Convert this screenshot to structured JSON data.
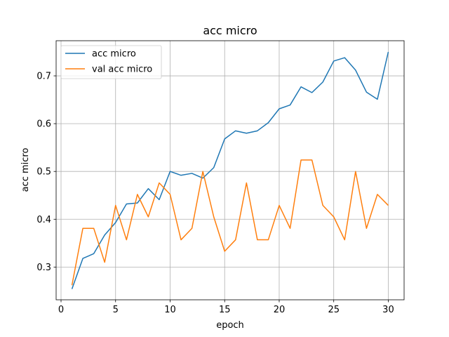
{
  "chart_data": {
    "type": "line",
    "title": "acc micro",
    "xlabel": "epoch",
    "ylabel": "acc micro",
    "xlim": [
      -0.45,
      31.45
    ],
    "ylim": [
      0.2315,
      0.7735
    ],
    "xticks": [
      0,
      5,
      10,
      15,
      20,
      25,
      30
    ],
    "yticks": [
      0.3,
      0.4,
      0.5,
      0.6,
      0.7
    ],
    "grid": true,
    "legend": "upper-left",
    "x": [
      1,
      2,
      3,
      4,
      5,
      6,
      7,
      8,
      9,
      10,
      11,
      12,
      13,
      14,
      15,
      16,
      17,
      18,
      19,
      20,
      21,
      22,
      23,
      24,
      25,
      26,
      27,
      28,
      29,
      30
    ],
    "series": [
      {
        "name": "acc micro",
        "color": "#1f77b4",
        "values": [
          0.254,
          0.318,
          0.328,
          0.367,
          0.393,
          0.432,
          0.434,
          0.464,
          0.441,
          0.5,
          0.492,
          0.496,
          0.486,
          0.508,
          0.568,
          0.585,
          0.58,
          0.585,
          0.602,
          0.631,
          0.639,
          0.677,
          0.665,
          0.687,
          0.731,
          0.738,
          0.712,
          0.666,
          0.651,
          0.75
        ]
      },
      {
        "name": "val acc micro",
        "color": "#ff7f0e",
        "values": [
          0.262,
          0.381,
          0.381,
          0.31,
          0.429,
          0.357,
          0.452,
          0.405,
          0.476,
          0.452,
          0.357,
          0.381,
          0.5,
          0.405,
          0.333,
          0.357,
          0.476,
          0.357,
          0.357,
          0.429,
          0.381,
          0.524,
          0.524,
          0.429,
          0.405,
          0.357,
          0.5,
          0.381,
          0.452,
          0.429
        ]
      }
    ]
  }
}
